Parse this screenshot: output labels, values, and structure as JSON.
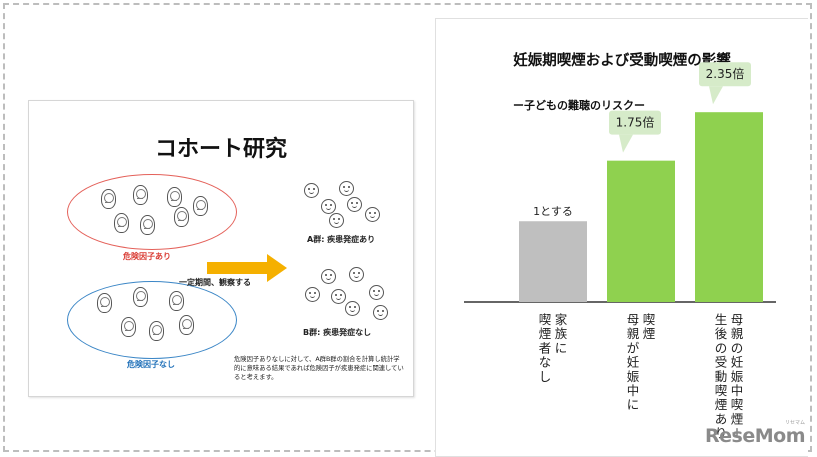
{
  "left_panel": {
    "title": "コホート研究",
    "risk_label": "危険因子あり",
    "no_risk_label": "危険因子なし",
    "arrow_label": "一定期間、観察する",
    "group_a": "A群: 疾患発症あり",
    "group_b": "B群: 疾患発症なし",
    "note": "危険因子ありなしに対して、A群B群の割合を計算し統計学的に意味ある結果であれば危険因子が疾患発症に関連していると考えます。"
  },
  "right_panel": {
    "title": "妊娠期喫煙および受動喫煙の影響",
    "subtitle": "ー子どもの難聴のリスクー"
  },
  "chart_data": {
    "type": "bar",
    "title": "妊娠期喫煙および受動喫煙の影響",
    "subtitle": "ー子どもの難聴のリスクー",
    "categories": [
      "家族に喫煙者なし",
      "喫煙 母親が妊娠中に",
      "母親の妊娠中喫煙＋生後の受動喫煙あり"
    ],
    "category_lines": [
      [
        "家族に",
        "喫煙者なし"
      ],
      [
        "喫煙",
        "母親が妊娠中に"
      ],
      [
        "母親の妊娠中喫煙＋",
        "生後の受動喫煙あり"
      ]
    ],
    "values": [
      1,
      1.75,
      2.35
    ],
    "data_labels": [
      "1とする",
      "1.75倍",
      "2.35倍"
    ],
    "colors": [
      "#bfbfbf",
      "#8fd14f",
      "#8fd14f"
    ],
    "callout_color": "#d6ebc9",
    "ylim": [
      0,
      2.6
    ]
  },
  "watermark": {
    "text": "ReseMom",
    "sub": "リセマム"
  }
}
